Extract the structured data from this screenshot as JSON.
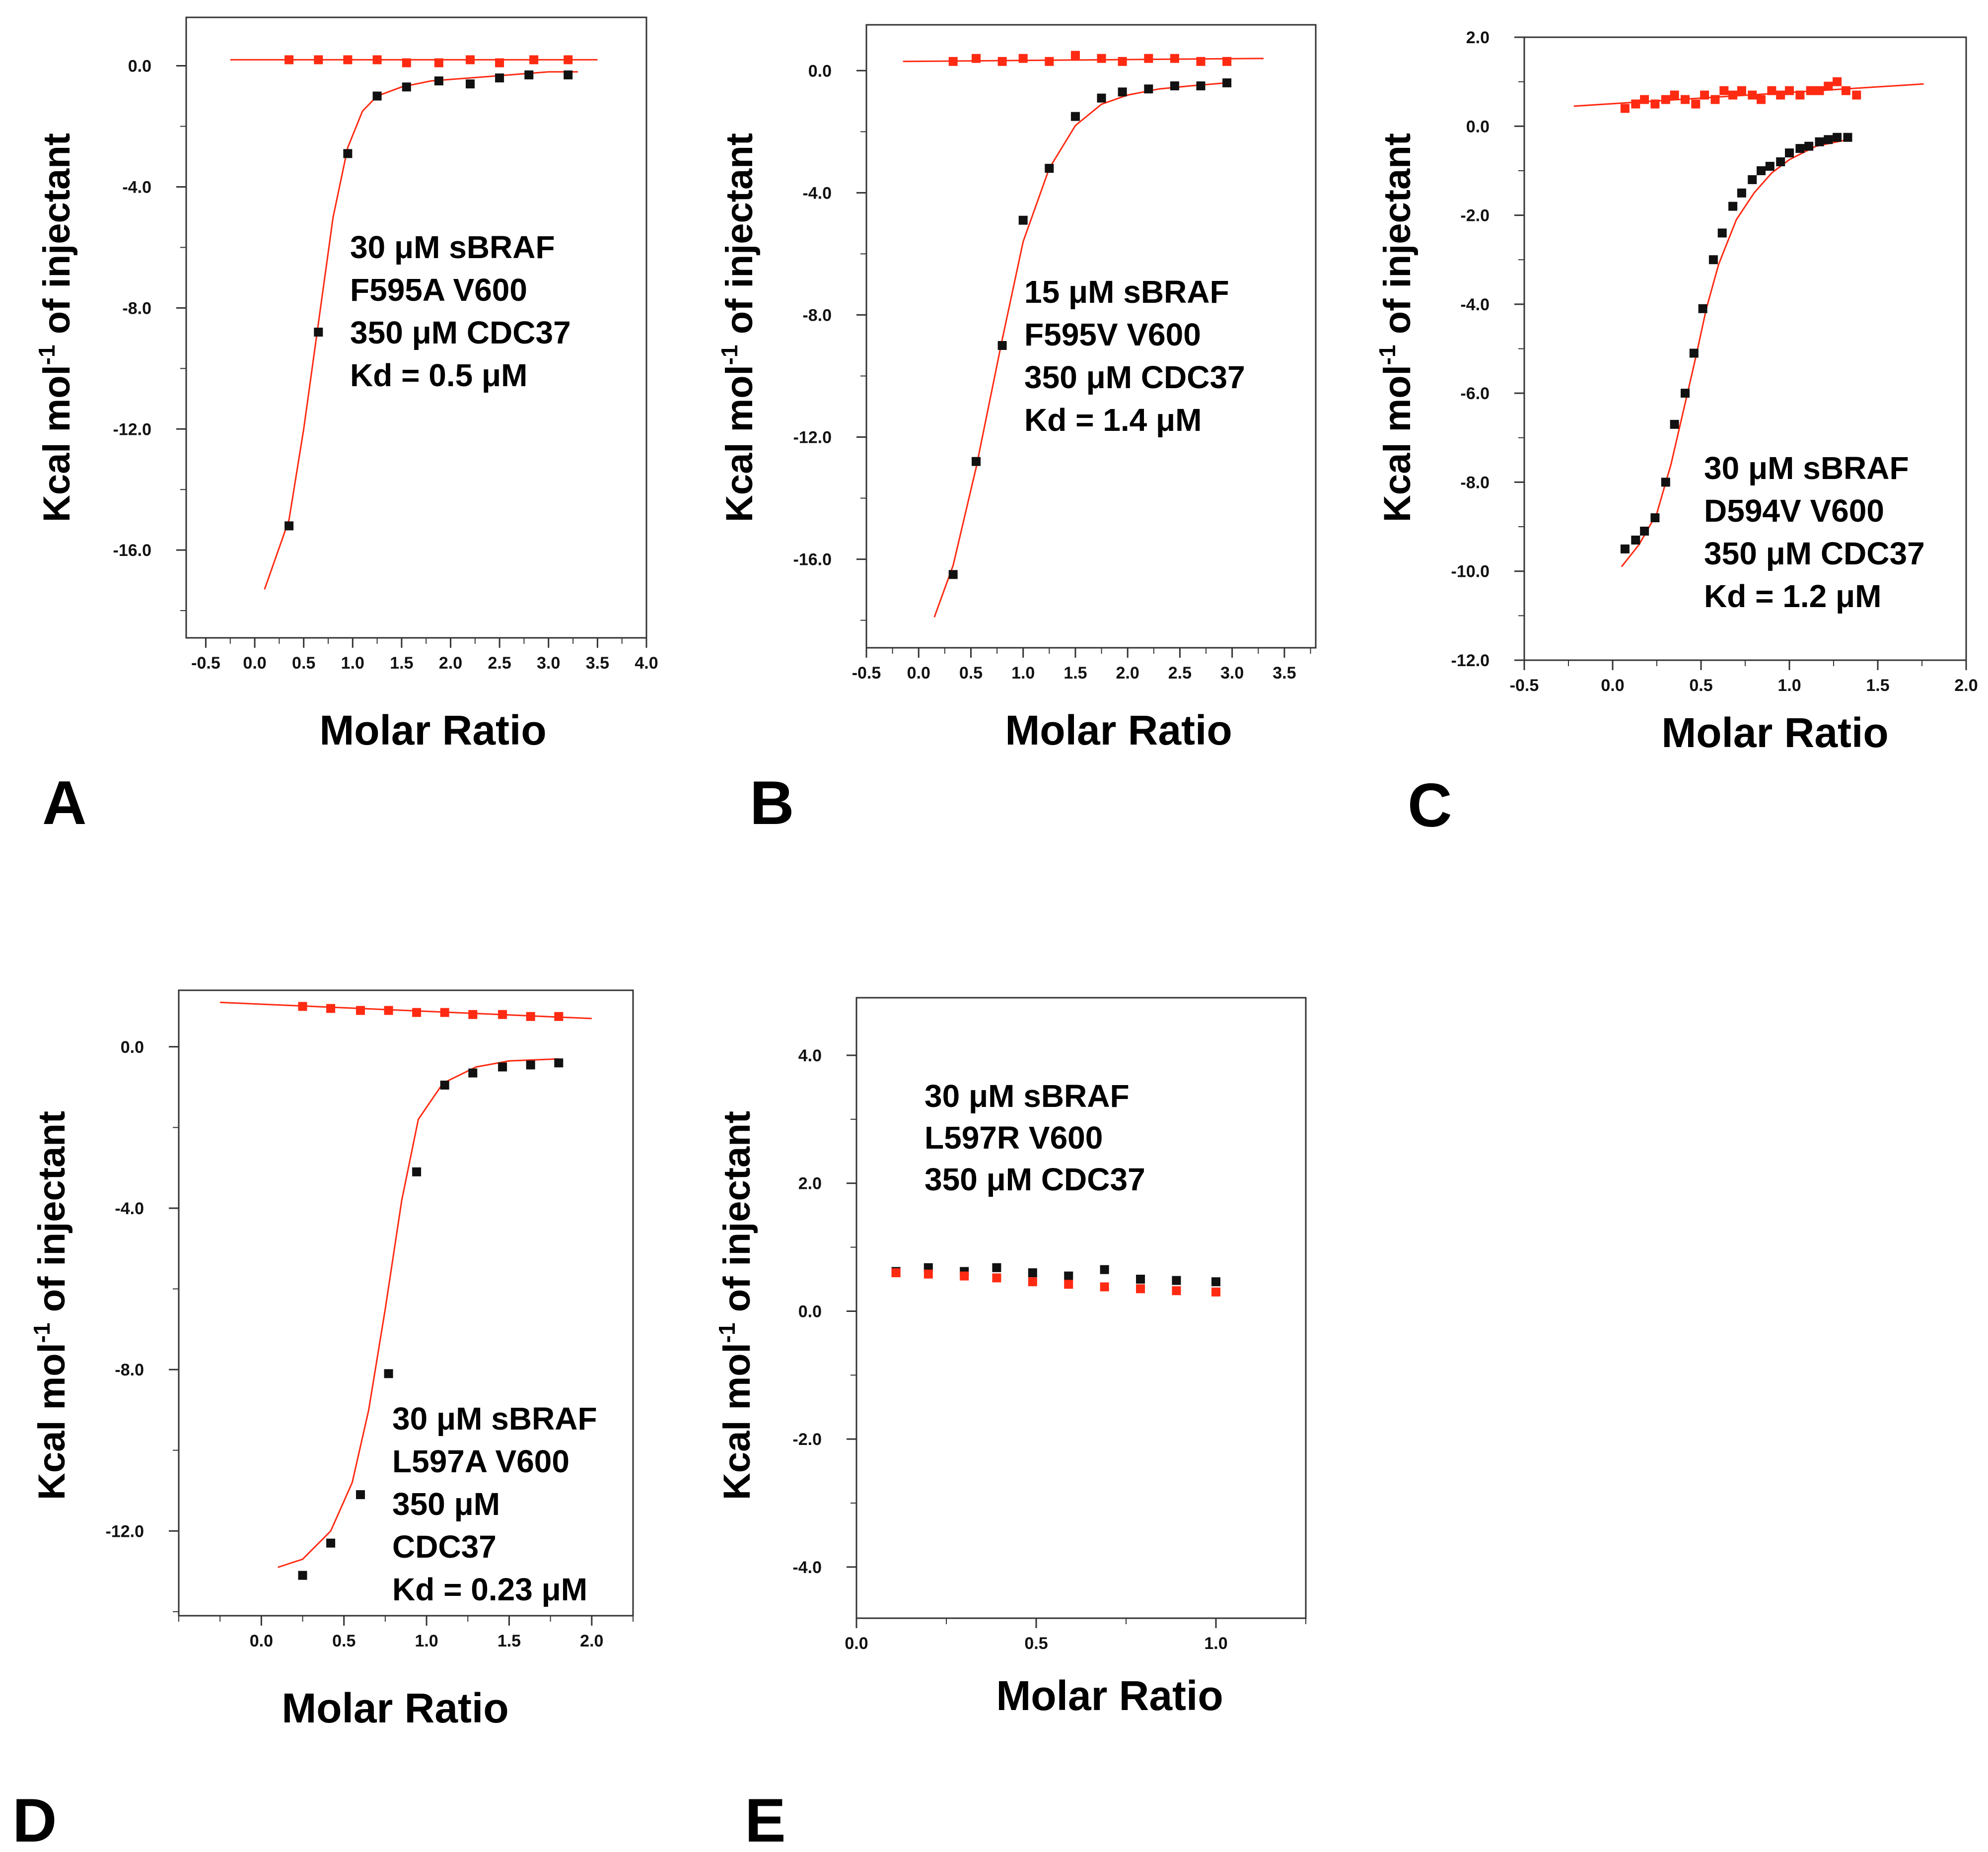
{
  "figure": {
    "colors": {
      "control": "#ff2a12",
      "sample": "#111111",
      "fit": "#ff2a12",
      "axis": "#333333"
    }
  },
  "chart_data": [
    {
      "type": "scatter",
      "panel": "A",
      "xlabel": "Molar Ratio",
      "ylabel": "Kcal mol-1 of injectant",
      "ylabel_main": "Kcal mol",
      "ylabel_sup": "-1",
      "ylabel_tail": " of injectant",
      "xlim": [
        -0.7,
        4.0
      ],
      "ylim": [
        -18.9,
        1.6
      ],
      "xticks": [
        -0.5,
        0.0,
        0.5,
        1.0,
        1.5,
        2.0,
        2.5,
        3.0,
        3.5,
        4.0
      ],
      "yticks": [
        0.0,
        -4.0,
        -8.0,
        -12.0,
        -16.0
      ],
      "tick_decimals": 1,
      "annotations": [
        "30 μM sBRAF",
        "F595A V600",
        "350 μM CDC37",
        "Kd = 0.5 μM"
      ],
      "series": [
        {
          "name": "control",
          "x": [
            0.35,
            0.65,
            0.95,
            1.25,
            1.55,
            1.88,
            2.2,
            2.5,
            2.85,
            3.2
          ],
          "y": [
            0.2,
            0.2,
            0.2,
            0.2,
            0.1,
            0.1,
            0.2,
            0.1,
            0.2,
            0.2
          ]
        },
        {
          "name": "sample",
          "x": [
            0.35,
            0.65,
            0.95,
            1.25,
            1.55,
            1.88,
            2.2,
            2.5,
            2.8,
            3.2
          ],
          "y": [
            -15.2,
            -8.8,
            -2.9,
            -1.0,
            -0.7,
            -0.5,
            -0.6,
            -0.4,
            -0.3,
            -0.3
          ]
        }
      ],
      "fits": [
        {
          "name": "control-fit",
          "x": [
            -0.25,
            3.5
          ],
          "y": [
            0.2,
            0.2
          ]
        },
        {
          "name": "sample-fit",
          "x": [
            0.1,
            0.35,
            0.5,
            0.65,
            0.8,
            0.95,
            1.1,
            1.25,
            1.5,
            1.8,
            2.2,
            2.6,
            3.0,
            3.3
          ],
          "y": [
            -17.3,
            -15.0,
            -12.0,
            -8.5,
            -5.0,
            -2.7,
            -1.5,
            -1.0,
            -0.7,
            -0.5,
            -0.4,
            -0.3,
            -0.2,
            -0.2
          ]
        }
      ]
    },
    {
      "type": "scatter",
      "panel": "B",
      "xlabel": "Molar Ratio",
      "ylabel": "Kcal mol-1 of injectant",
      "ylabel_main": "Kcal mol",
      "ylabel_sup": "-1",
      "ylabel_tail": " of injectant",
      "xlim": [
        -0.5,
        3.8
      ],
      "ylim": [
        -18.9,
        1.5
      ],
      "xticks": [
        -0.5,
        0.0,
        0.5,
        1.0,
        1.5,
        2.0,
        2.5,
        3.0,
        3.5
      ],
      "yticks": [
        0.0,
        -4.0,
        -8.0,
        -12.0,
        -16.0
      ],
      "tick_decimals": 1,
      "annotations": [
        "15 μM sBRAF",
        "F595V V600",
        "350 μM CDC37",
        "Kd = 1.4 μM"
      ],
      "series": [
        {
          "name": "control",
          "x": [
            0.33,
            0.55,
            0.8,
            1.0,
            1.25,
            1.5,
            1.75,
            1.95,
            2.2,
            2.45,
            2.7,
            2.95
          ],
          "y": [
            0.3,
            0.4,
            0.3,
            0.4,
            0.3,
            0.5,
            0.4,
            0.3,
            0.4,
            0.4,
            0.3,
            0.3
          ]
        },
        {
          "name": "sample",
          "x": [
            0.33,
            0.55,
            0.8,
            1.0,
            1.25,
            1.5,
            1.75,
            1.95,
            2.2,
            2.45,
            2.7,
            2.95
          ],
          "y": [
            -16.5,
            -12.8,
            -9.0,
            -4.9,
            -3.2,
            -1.5,
            -0.9,
            -0.7,
            -0.6,
            -0.5,
            -0.5,
            -0.4
          ]
        }
      ],
      "fits": [
        {
          "name": "control-fit",
          "x": [
            -0.15,
            3.3
          ],
          "y": [
            0.3,
            0.4
          ]
        },
        {
          "name": "sample-fit",
          "x": [
            0.15,
            0.33,
            0.55,
            0.8,
            1.0,
            1.25,
            1.5,
            1.75,
            2.0,
            2.3,
            2.6,
            2.95
          ],
          "y": [
            -17.9,
            -16.2,
            -13.0,
            -8.8,
            -5.6,
            -3.2,
            -1.8,
            -1.1,
            -0.8,
            -0.6,
            -0.5,
            -0.4
          ]
        }
      ]
    },
    {
      "type": "scatter",
      "panel": "C",
      "xlabel": "Molar Ratio",
      "ylabel": "Kcal mol-1 of injectant",
      "ylabel_main": "Kcal mol",
      "ylabel_sup": "-1",
      "ylabel_tail": " of injectant",
      "xlim": [
        -0.5,
        2.0
      ],
      "ylim": [
        -12.0,
        2.0
      ],
      "xticks": [
        -0.5,
        0.0,
        0.5,
        1.0,
        1.5,
        2.0
      ],
      "yticks": [
        2.0,
        0.0,
        -2.0,
        -4.0,
        -6.0,
        -8.0,
        -10.0,
        -12.0
      ],
      "tick_decimals": 1,
      "annotations": [
        "30 μM sBRAF",
        "D594V V600",
        "350 μM CDC37",
        "Kd = 1.2 μM"
      ],
      "series": [
        {
          "name": "control",
          "x": [
            0.07,
            0.13,
            0.18,
            0.24,
            0.3,
            0.35,
            0.41,
            0.47,
            0.52,
            0.58,
            0.63,
            0.68,
            0.73,
            0.79,
            0.84,
            0.9,
            0.95,
            1.0,
            1.06,
            1.12,
            1.17,
            1.22,
            1.27,
            1.32,
            1.38
          ],
          "y": [
            0.4,
            0.5,
            0.6,
            0.5,
            0.6,
            0.7,
            0.6,
            0.5,
            0.7,
            0.6,
            0.8,
            0.7,
            0.8,
            0.7,
            0.6,
            0.8,
            0.7,
            0.8,
            0.7,
            0.8,
            0.8,
            0.9,
            1.0,
            0.8,
            0.7
          ]
        },
        {
          "name": "sample",
          "x": [
            0.07,
            0.13,
            0.18,
            0.24,
            0.3,
            0.35,
            0.41,
            0.46,
            0.51,
            0.57,
            0.62,
            0.68,
            0.73,
            0.79,
            0.84,
            0.89,
            0.95,
            1.0,
            1.06,
            1.11,
            1.17,
            1.22,
            1.27,
            1.33
          ],
          "y": [
            -9.5,
            -9.3,
            -9.1,
            -8.8,
            -8.0,
            -6.7,
            -6.0,
            -5.1,
            -4.1,
            -3.0,
            -2.4,
            -1.8,
            -1.5,
            -1.2,
            -1.0,
            -0.9,
            -0.8,
            -0.6,
            -0.5,
            -0.45,
            -0.35,
            -0.3,
            -0.25,
            -0.25
          ]
        }
      ],
      "fits": [
        {
          "name": "control-fit",
          "x": [
            -0.22,
            1.76
          ],
          "y": [
            0.45,
            0.95
          ]
        },
        {
          "name": "sample-fit",
          "x": [
            0.05,
            0.15,
            0.25,
            0.33,
            0.4,
            0.47,
            0.53,
            0.6,
            0.7,
            0.8,
            0.9,
            1.0,
            1.15,
            1.33
          ],
          "y": [
            -9.9,
            -9.4,
            -8.7,
            -7.6,
            -6.4,
            -5.2,
            -4.1,
            -3.1,
            -2.1,
            -1.5,
            -1.05,
            -0.75,
            -0.45,
            -0.3
          ]
        }
      ]
    },
    {
      "type": "scatter",
      "panel": "D",
      "xlabel": "Molar Ratio",
      "ylabel": "Kcal mol-1 of injectant",
      "ylabel_main": "Kcal mol",
      "ylabel_sup": "-1",
      "ylabel_tail": " of injectant",
      "xlim": [
        -0.5,
        2.25
      ],
      "ylim": [
        -14.1,
        1.4
      ],
      "xticks": [
        0.0,
        0.5,
        1.0,
        1.5,
        2.0
      ],
      "yticks": [
        0.0,
        -4.0,
        -8.0,
        -12.0
      ],
      "tick_decimals": 1,
      "annotations": [
        "30 μM sBRAF",
        "L597A V600",
        "350 μM",
        "CDC37",
        "Kd = 0.23 μM"
      ],
      "series": [
        {
          "name": "control",
          "x": [
            0.25,
            0.42,
            0.6,
            0.77,
            0.94,
            1.11,
            1.28,
            1.46,
            1.63,
            1.8
          ],
          "y": [
            1.0,
            0.95,
            0.9,
            0.9,
            0.85,
            0.85,
            0.8,
            0.8,
            0.75,
            0.75
          ]
        },
        {
          "name": "sample",
          "x": [
            0.25,
            0.42,
            0.6,
            0.77,
            0.94,
            1.11,
            1.28,
            1.46,
            1.63,
            1.8
          ],
          "y": [
            -13.1,
            -12.3,
            -11.1,
            -8.1,
            -3.1,
            -0.95,
            -0.65,
            -0.5,
            -0.45,
            -0.4
          ]
        }
      ],
      "fits": [
        {
          "name": "control-fit",
          "x": [
            -0.25,
            2.0
          ],
          "y": [
            1.1,
            0.7
          ]
        },
        {
          "name": "sample-fit",
          "x": [
            0.1,
            0.25,
            0.42,
            0.55,
            0.65,
            0.75,
            0.85,
            0.95,
            1.1,
            1.3,
            1.5,
            1.8
          ],
          "y": [
            -12.9,
            -12.7,
            -12.0,
            -10.8,
            -9.0,
            -6.5,
            -3.8,
            -1.8,
            -0.9,
            -0.5,
            -0.35,
            -0.3
          ]
        }
      ]
    },
    {
      "type": "scatter",
      "panel": "E",
      "xlabel": "Molar Ratio",
      "ylabel": "Kcal mol-1 of injectant",
      "ylabel_main": "Kcal mol",
      "ylabel_sup": "-1",
      "ylabel_tail": " of injectant",
      "xlim": [
        0.0,
        1.25
      ],
      "ylim": [
        -4.8,
        4.9
      ],
      "xticks": [
        0.0,
        0.5,
        1.0
      ],
      "yticks": [
        4.0,
        2.0,
        0.0,
        -2.0,
        -4.0
      ],
      "tick_decimals": 1,
      "annotations": [
        "30 μM sBRAF",
        "L597R V600",
        "350 μM CDC37"
      ],
      "series": [
        {
          "name": "sample",
          "x": [
            0.11,
            0.2,
            0.3,
            0.39,
            0.49,
            0.59,
            0.69,
            0.79,
            0.89,
            1.0
          ],
          "y": [
            0.62,
            0.68,
            0.62,
            0.68,
            0.6,
            0.55,
            0.65,
            0.5,
            0.48,
            0.46
          ]
        },
        {
          "name": "control",
          "x": [
            0.11,
            0.2,
            0.3,
            0.39,
            0.49,
            0.59,
            0.69,
            0.79,
            0.89,
            1.0
          ],
          "y": [
            0.6,
            0.58,
            0.55,
            0.52,
            0.46,
            0.42,
            0.38,
            0.35,
            0.32,
            0.3
          ]
        }
      ],
      "fits": []
    }
  ]
}
